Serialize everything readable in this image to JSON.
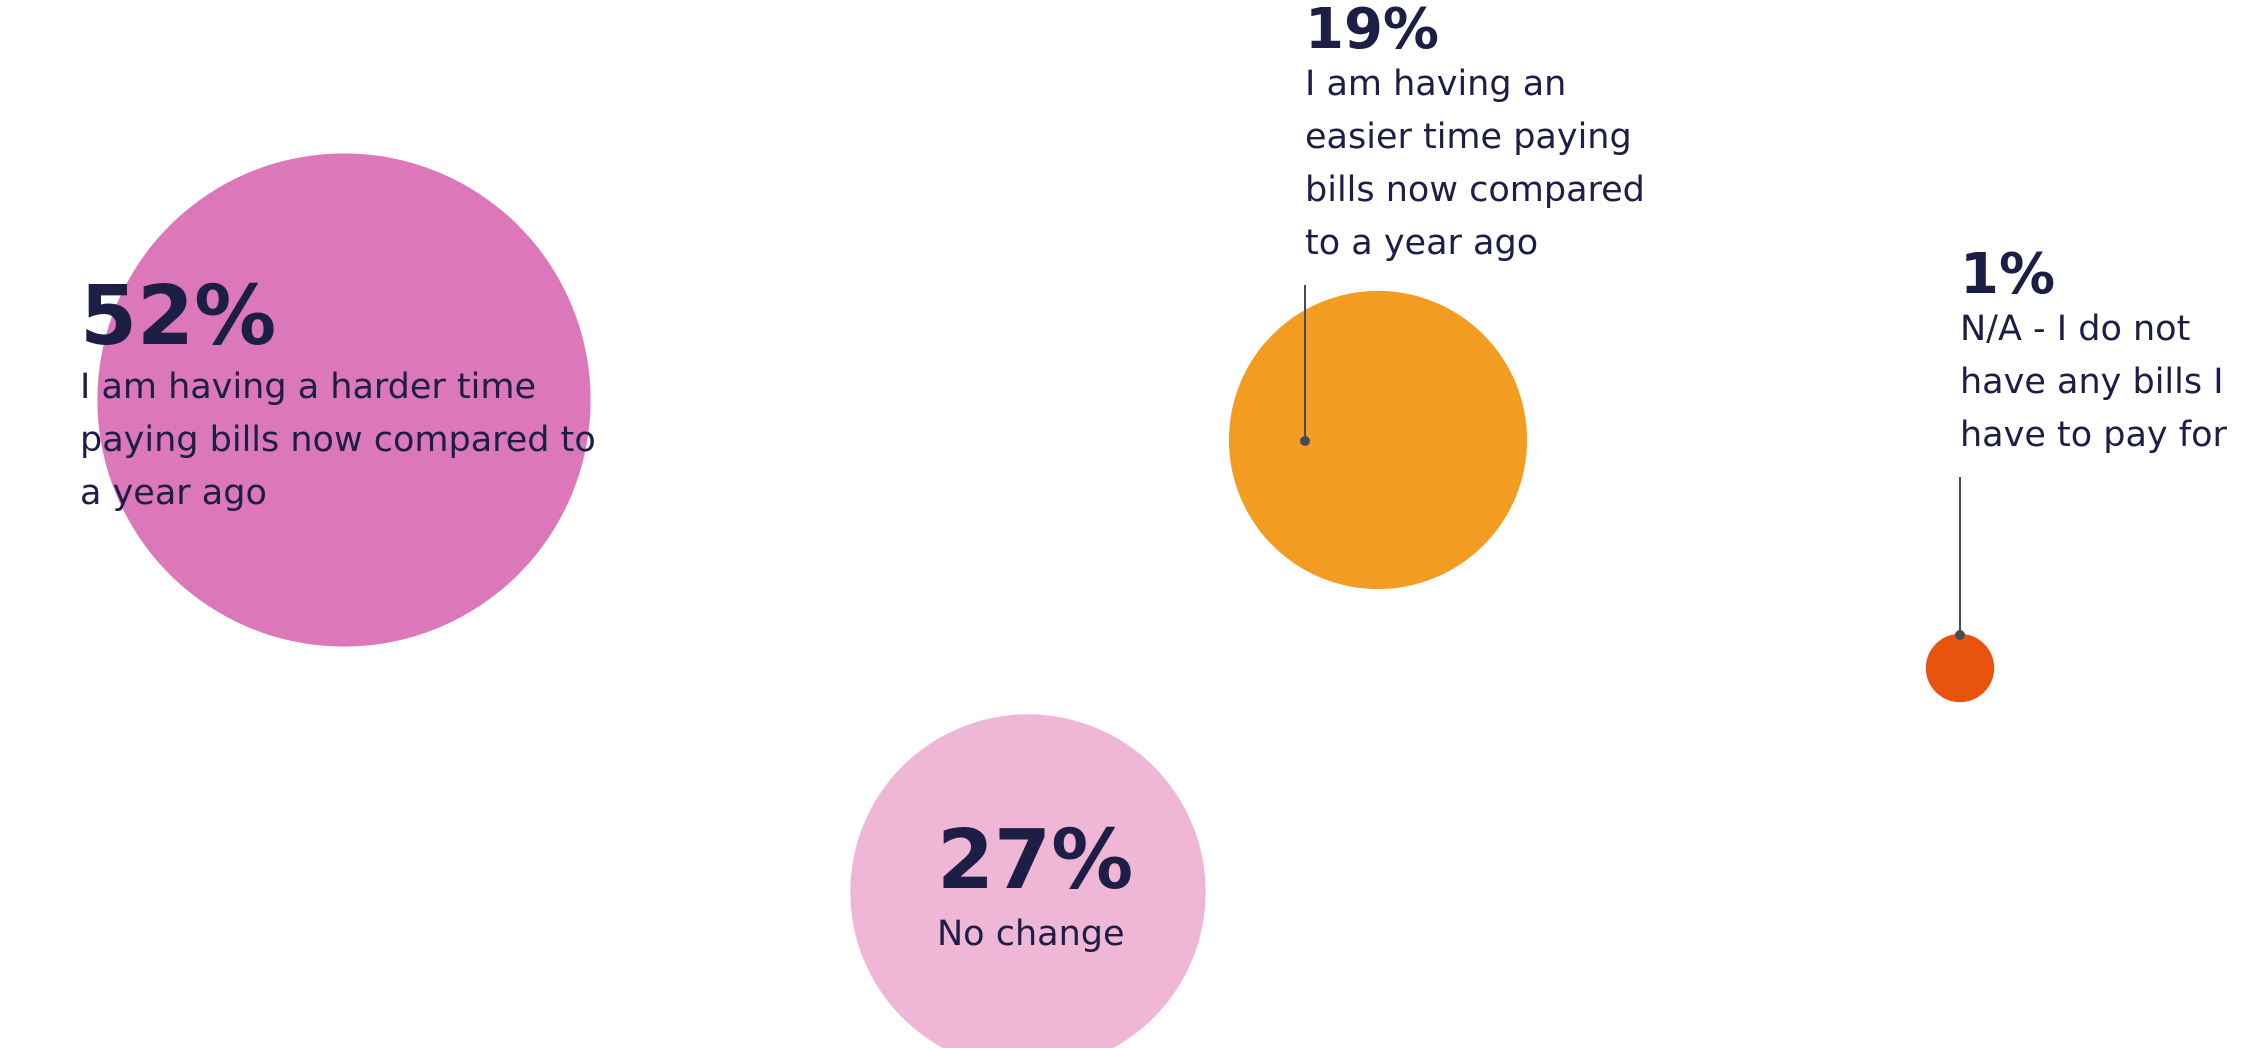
{
  "chart_data": {
    "type": "bubble",
    "colors": {
      "text": "#1c1e46",
      "leader_line": "#4a4a55"
    },
    "bubbles": [
      {
        "value": 52,
        "value_label": "52%",
        "label_lines": [
          "I am having a harder time",
          "paying bills now compared to",
          "a year ago"
        ],
        "color": "#dc78ba"
      },
      {
        "value": 27,
        "value_label": "27%",
        "label_lines": [
          "No change"
        ],
        "color": "#efb6d5"
      },
      {
        "value": 19,
        "value_label": "19%",
        "label_lines": [
          "I am having an",
          "easier time paying",
          "bills now compared",
          "to a year ago"
        ],
        "color": "#f39c22"
      },
      {
        "value": 1,
        "value_label": "1%",
        "label_lines": [
          "N/A - I do not",
          "have any bills I",
          "have to pay for"
        ],
        "color": "#e8530e"
      }
    ]
  }
}
